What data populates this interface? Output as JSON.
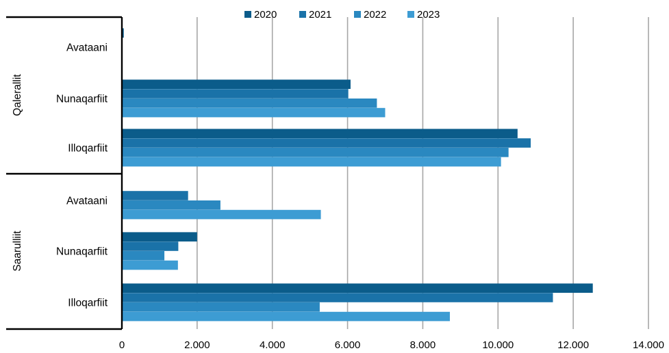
{
  "chart_data": {
    "type": "bar",
    "orientation": "horizontal",
    "title": "",
    "xlabel": "",
    "ylabel": "",
    "xlim": [
      0,
      14000
    ],
    "x_ticks": [
      0,
      2000,
      4000,
      6000,
      8000,
      10000,
      12000,
      14000
    ],
    "x_tick_labels": [
      "0",
      "2.000",
      "4.000",
      "6.000",
      "8.000",
      "10.000",
      "12.000",
      "14.000"
    ],
    "grid": "vertical",
    "legend_position": "top",
    "groups": [
      {
        "label": "Qalerallit",
        "categories": [
          "Avataani",
          "Nunaqarfiit",
          "Illoqarfiit"
        ]
      },
      {
        "label": "Saarulliit",
        "categories": [
          "Avataani",
          "Nunaqarfiit",
          "Illoqarfiit"
        ]
      }
    ],
    "series": [
      {
        "name": "2020",
        "color": "#0b5c8a",
        "values": [
          50,
          6080,
          10520,
          0,
          2000,
          12520
        ]
      },
      {
        "name": "2021",
        "color": "#1a72a8",
        "values": [
          0,
          6020,
          10870,
          1760,
          1500,
          11460
        ]
      },
      {
        "name": "2022",
        "color": "#2a88c0",
        "values": [
          0,
          6780,
          10280,
          2620,
          1130,
          5260
        ]
      },
      {
        "name": "2023",
        "color": "#3d9cd3",
        "values": [
          0,
          7000,
          10080,
          5290,
          1490,
          8720
        ]
      }
    ]
  }
}
